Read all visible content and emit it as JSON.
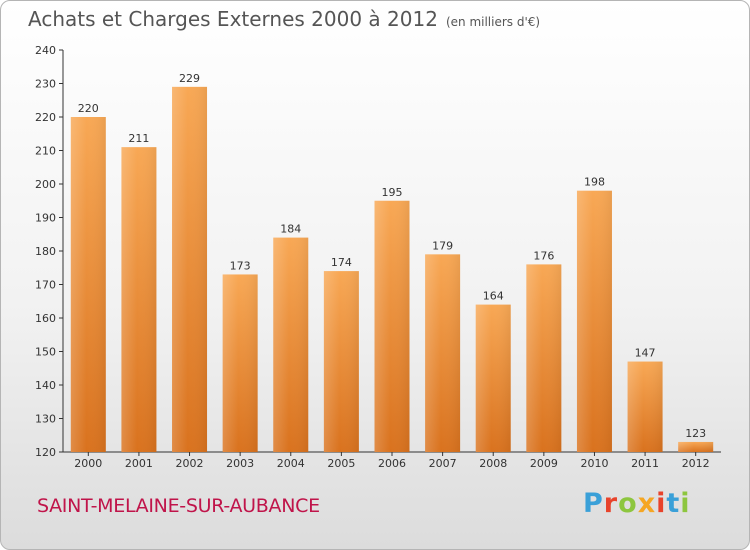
{
  "title": "Achats et Charges Externes 2000 à 2012",
  "unit": "(en milliers d'€)",
  "commune": "SAINT-MELAINE-SUR-AUBANCE",
  "logo": {
    "letters": [
      "P",
      "r",
      "o",
      "x",
      "i",
      "t",
      "i"
    ],
    "colors": [
      "#3aa0d8",
      "#e8432b",
      "#8dc63f",
      "#f5a623",
      "#e8432b",
      "#3aa0d8",
      "#8dc63f"
    ]
  },
  "colors": {
    "bar_top": "#f8a855",
    "bar_bottom": "#d9721e",
    "commune": "#c0144a"
  },
  "chart_data": {
    "type": "bar",
    "categories": [
      "2000",
      "2001",
      "2002",
      "2003",
      "2004",
      "2005",
      "2006",
      "2007",
      "2008",
      "2009",
      "2010",
      "2011",
      "2012"
    ],
    "values": [
      220,
      211,
      229,
      173,
      184,
      174,
      195,
      179,
      164,
      176,
      198,
      147,
      123
    ],
    "ylim": [
      120,
      240
    ],
    "yticks": [
      120,
      130,
      140,
      150,
      160,
      170,
      180,
      190,
      200,
      210,
      220,
      230,
      240
    ],
    "grid": false
  }
}
